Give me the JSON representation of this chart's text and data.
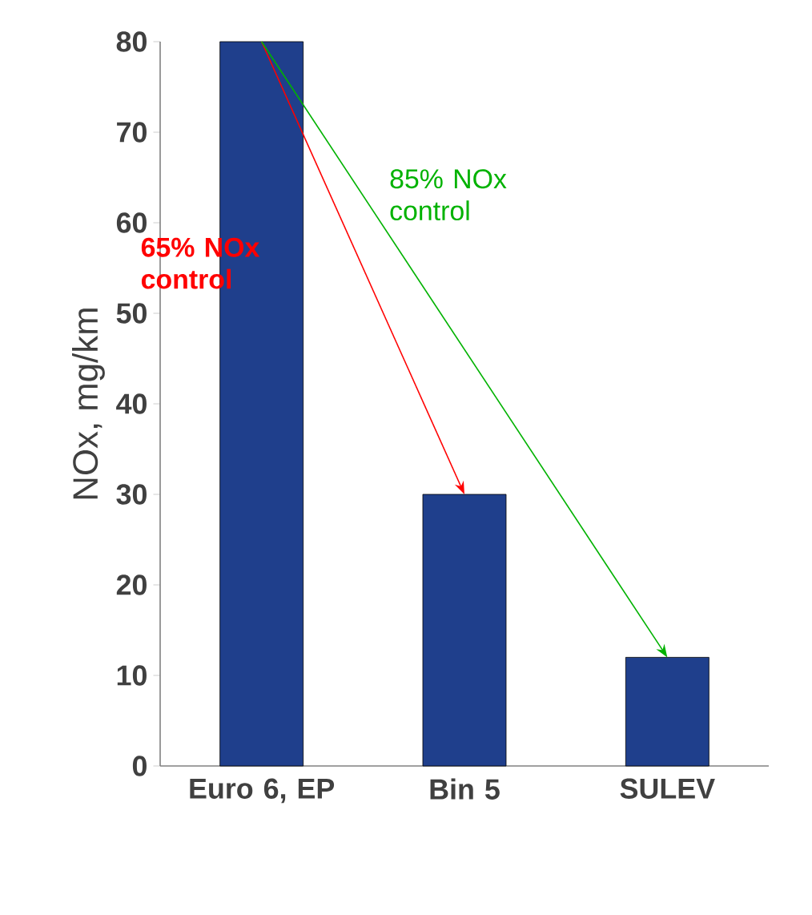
{
  "chart_data": {
    "type": "bar",
    "ylabel": "NOx, mg/km",
    "categories": [
      "Euro 6, EP",
      "Bin 5",
      "SULEV"
    ],
    "values": [
      80,
      30,
      12
    ],
    "color": "#1f3f8c",
    "ylim": [
      0,
      80
    ],
    "yticks": [
      0,
      10,
      20,
      30,
      40,
      50,
      60,
      70,
      80
    ],
    "annotations": [
      "65% NOx control",
      "85% NOx control"
    ]
  }
}
